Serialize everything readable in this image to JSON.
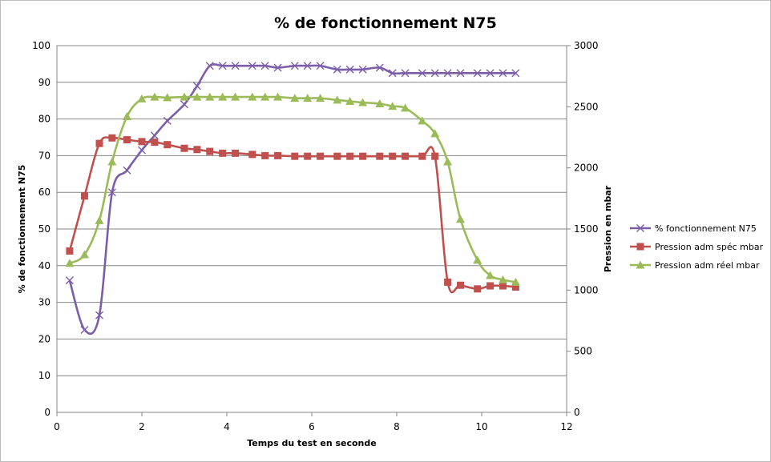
{
  "chart_data": {
    "type": "line",
    "title": "% de fonctionnement N75",
    "xlabel": "Temps du test en seconde",
    "ylabel": "% de fonctionnement N75",
    "y2label": "Pression en mbar",
    "xlim": [
      0,
      12
    ],
    "ylim": [
      0,
      100
    ],
    "y2lim": [
      0,
      3000
    ],
    "xticks": [
      "0",
      "2",
      "4",
      "6",
      "8",
      "10",
      "12"
    ],
    "yticks": [
      "0",
      "10",
      "20",
      "30",
      "40",
      "50",
      "60",
      "70",
      "80",
      "90",
      "100"
    ],
    "y2ticks": [
      "0",
      "500",
      "1000",
      "1500",
      "2000",
      "2500",
      "3000"
    ],
    "grid": "horizontal",
    "legend_position": "right",
    "series": [
      {
        "name": "% fonctionnement N75",
        "axis": "left",
        "color": "#7b5ea7",
        "marker": "x",
        "x": [
          0.3,
          0.65,
          1.0,
          1.3,
          1.65,
          2.0,
          2.3,
          2.6,
          3.0,
          3.3,
          3.6,
          3.9,
          4.2,
          4.6,
          4.9,
          5.2,
          5.6,
          5.9,
          6.2,
          6.6,
          6.9,
          7.2,
          7.6,
          7.9,
          8.2,
          8.6,
          8.9,
          9.2,
          9.5,
          9.9,
          10.2,
          10.5,
          10.8
        ],
        "y": [
          36,
          22.5,
          26.5,
          60,
          66,
          71.5,
          75.5,
          79.5,
          84,
          89,
          94.5,
          94.5,
          94.5,
          94.5,
          94.5,
          94,
          94.5,
          94.5,
          94.5,
          93.5,
          93.5,
          93.5,
          94,
          92.5,
          92.5,
          92.5,
          92.5,
          92.5,
          92.5,
          92.5,
          92.5,
          92.5,
          92.5
        ]
      },
      {
        "name": "Pression adm spéc mbar",
        "axis": "right",
        "color": "#c0504d",
        "marker": "square",
        "x": [
          0.3,
          0.65,
          1.0,
          1.3,
          1.65,
          2.0,
          2.3,
          2.6,
          3.0,
          3.3,
          3.6,
          3.9,
          4.2,
          4.6,
          4.9,
          5.2,
          5.6,
          5.9,
          6.2,
          6.6,
          6.9,
          7.2,
          7.6,
          7.9,
          8.2,
          8.6,
          8.9,
          9.2,
          9.5,
          9.9,
          10.2,
          10.5,
          10.8
        ],
        "y": [
          1320,
          1770,
          2200,
          2245,
          2230,
          2215,
          2210,
          2190,
          2160,
          2150,
          2135,
          2120,
          2120,
          2110,
          2100,
          2100,
          2095,
          2095,
          2095,
          2095,
          2095,
          2095,
          2095,
          2095,
          2095,
          2095,
          2095,
          1065,
          1040,
          1010,
          1035,
          1035,
          1025
        ]
      },
      {
        "name": "Pression adm réel mbar",
        "axis": "right",
        "color": "#9bbb59",
        "marker": "triangle",
        "x": [
          0.3,
          0.65,
          1.0,
          1.3,
          1.65,
          2.0,
          2.3,
          2.6,
          3.0,
          3.3,
          3.6,
          3.9,
          4.2,
          4.6,
          4.9,
          5.2,
          5.6,
          5.9,
          6.2,
          6.6,
          6.9,
          7.2,
          7.6,
          7.9,
          8.2,
          8.6,
          8.9,
          9.2,
          9.5,
          9.9,
          10.2,
          10.5,
          10.8
        ],
        "y": [
          1220,
          1290,
          1570,
          2050,
          2420,
          2565,
          2580,
          2575,
          2580,
          2580,
          2580,
          2580,
          2580,
          2580,
          2580,
          2580,
          2570,
          2570,
          2570,
          2555,
          2545,
          2535,
          2525,
          2505,
          2490,
          2385,
          2280,
          2050,
          1580,
          1245,
          1120,
          1085,
          1065
        ]
      }
    ]
  }
}
